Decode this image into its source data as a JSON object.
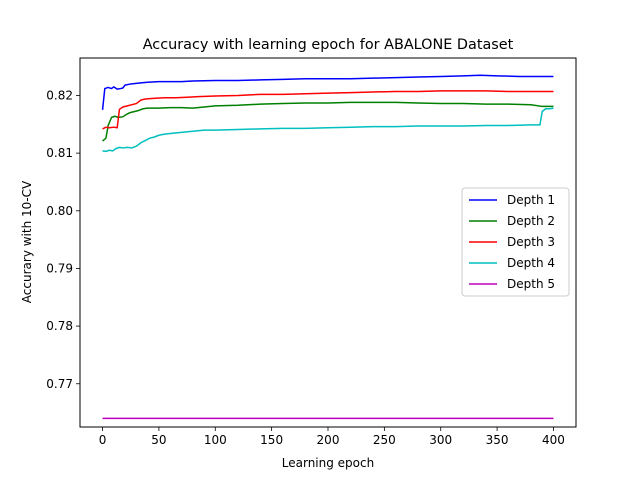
{
  "chart_data": {
    "type": "line",
    "title": "Accuracy with learning epoch for ABALONE Dataset",
    "xlabel": "Learning epoch",
    "ylabel": "Accurary with 10-CV",
    "xlim": [
      -20,
      420
    ],
    "ylim": [
      0.7625,
      0.8265
    ],
    "xticks": [
      0,
      50,
      100,
      150,
      200,
      250,
      300,
      350,
      400
    ],
    "yticks": [
      0.77,
      0.78,
      0.79,
      0.8,
      0.81,
      0.82
    ],
    "ytick_labels": [
      "0.77",
      "0.78",
      "0.79",
      "0.80",
      "0.81",
      "0.82"
    ],
    "grid": false,
    "legend_position": "right",
    "series": [
      {
        "name": "Depth 1",
        "color": "#0000ff",
        "points": [
          [
            0,
            0.8175
          ],
          [
            2,
            0.8212
          ],
          [
            5,
            0.8214
          ],
          [
            8,
            0.8212
          ],
          [
            10,
            0.8215
          ],
          [
            13,
            0.8211
          ],
          [
            16,
            0.8212
          ],
          [
            18,
            0.8213
          ],
          [
            20,
            0.8218
          ],
          [
            25,
            0.822
          ],
          [
            30,
            0.8221
          ],
          [
            35,
            0.8222
          ],
          [
            40,
            0.8223
          ],
          [
            50,
            0.8224
          ],
          [
            60,
            0.8224
          ],
          [
            70,
            0.8224
          ],
          [
            80,
            0.8225
          ],
          [
            100,
            0.8226
          ],
          [
            120,
            0.8226
          ],
          [
            140,
            0.8227
          ],
          [
            160,
            0.8228
          ],
          [
            180,
            0.8229
          ],
          [
            200,
            0.8229
          ],
          [
            220,
            0.8229
          ],
          [
            240,
            0.823
          ],
          [
            260,
            0.8231
          ],
          [
            280,
            0.8232
          ],
          [
            300,
            0.8233
          ],
          [
            320,
            0.8234
          ],
          [
            335,
            0.8235
          ],
          [
            350,
            0.8234
          ],
          [
            370,
            0.8233
          ],
          [
            390,
            0.8233
          ],
          [
            400,
            0.8233
          ]
        ]
      },
      {
        "name": "Depth 2",
        "color": "#008000",
        "points": [
          [
            0,
            0.8121
          ],
          [
            3,
            0.8126
          ],
          [
            5,
            0.8148
          ],
          [
            8,
            0.8162
          ],
          [
            11,
            0.8164
          ],
          [
            14,
            0.8162
          ],
          [
            18,
            0.8163
          ],
          [
            21,
            0.8167
          ],
          [
            24,
            0.817
          ],
          [
            28,
            0.8172
          ],
          [
            32,
            0.8174
          ],
          [
            36,
            0.8177
          ],
          [
            40,
            0.8178
          ],
          [
            50,
            0.8178
          ],
          [
            60,
            0.8179
          ],
          [
            70,
            0.8179
          ],
          [
            80,
            0.8178
          ],
          [
            90,
            0.818
          ],
          [
            100,
            0.8182
          ],
          [
            120,
            0.8183
          ],
          [
            140,
            0.8185
          ],
          [
            160,
            0.8186
          ],
          [
            180,
            0.8187
          ],
          [
            200,
            0.8187
          ],
          [
            220,
            0.8188
          ],
          [
            240,
            0.8188
          ],
          [
            260,
            0.8188
          ],
          [
            280,
            0.8187
          ],
          [
            300,
            0.8186
          ],
          [
            320,
            0.8186
          ],
          [
            340,
            0.8185
          ],
          [
            360,
            0.8185
          ],
          [
            380,
            0.8184
          ],
          [
            390,
            0.8181
          ],
          [
            400,
            0.8181
          ]
        ]
      },
      {
        "name": "Depth 3",
        "color": "#ff0000",
        "points": [
          [
            0,
            0.8142
          ],
          [
            3,
            0.8145
          ],
          [
            6,
            0.8144
          ],
          [
            10,
            0.8145
          ],
          [
            13,
            0.8144
          ],
          [
            15,
            0.8176
          ],
          [
            18,
            0.818
          ],
          [
            22,
            0.8182
          ],
          [
            26,
            0.8184
          ],
          [
            30,
            0.8186
          ],
          [
            34,
            0.8192
          ],
          [
            38,
            0.8194
          ],
          [
            45,
            0.8195
          ],
          [
            55,
            0.8196
          ],
          [
            65,
            0.8196
          ],
          [
            75,
            0.8197
          ],
          [
            85,
            0.8198
          ],
          [
            100,
            0.8199
          ],
          [
            120,
            0.82
          ],
          [
            140,
            0.8202
          ],
          [
            160,
            0.8202
          ],
          [
            180,
            0.8203
          ],
          [
            200,
            0.8204
          ],
          [
            220,
            0.8205
          ],
          [
            240,
            0.8206
          ],
          [
            260,
            0.8207
          ],
          [
            280,
            0.8207
          ],
          [
            300,
            0.8208
          ],
          [
            320,
            0.8208
          ],
          [
            340,
            0.8208
          ],
          [
            360,
            0.8207
          ],
          [
            380,
            0.8207
          ],
          [
            400,
            0.8207
          ]
        ]
      },
      {
        "name": "Depth 4",
        "color": "#00bfbf",
        "points": [
          [
            0,
            0.8104
          ],
          [
            3,
            0.8103
          ],
          [
            6,
            0.8105
          ],
          [
            9,
            0.8104
          ],
          [
            12,
            0.8108
          ],
          [
            15,
            0.811
          ],
          [
            18,
            0.8109
          ],
          [
            22,
            0.811
          ],
          [
            26,
            0.8109
          ],
          [
            30,
            0.8112
          ],
          [
            34,
            0.8118
          ],
          [
            38,
            0.8122
          ],
          [
            42,
            0.8126
          ],
          [
            46,
            0.8128
          ],
          [
            50,
            0.8131
          ],
          [
            55,
            0.8133
          ],
          [
            60,
            0.8134
          ],
          [
            70,
            0.8136
          ],
          [
            80,
            0.8138
          ],
          [
            90,
            0.814
          ],
          [
            100,
            0.814
          ],
          [
            120,
            0.8141
          ],
          [
            140,
            0.8142
          ],
          [
            160,
            0.8143
          ],
          [
            180,
            0.8143
          ],
          [
            200,
            0.8144
          ],
          [
            220,
            0.8145
          ],
          [
            240,
            0.8146
          ],
          [
            260,
            0.8146
          ],
          [
            280,
            0.8147
          ],
          [
            300,
            0.8147
          ],
          [
            320,
            0.8147
          ],
          [
            340,
            0.8148
          ],
          [
            360,
            0.8148
          ],
          [
            380,
            0.8149
          ],
          [
            388,
            0.8149
          ],
          [
            390,
            0.8172
          ],
          [
            393,
            0.8177
          ],
          [
            397,
            0.8177
          ],
          [
            400,
            0.8178
          ]
        ]
      },
      {
        "name": "Depth 5",
        "color": "#bf00bf",
        "points": [
          [
            0,
            0.764
          ],
          [
            400,
            0.764
          ]
        ]
      }
    ]
  }
}
